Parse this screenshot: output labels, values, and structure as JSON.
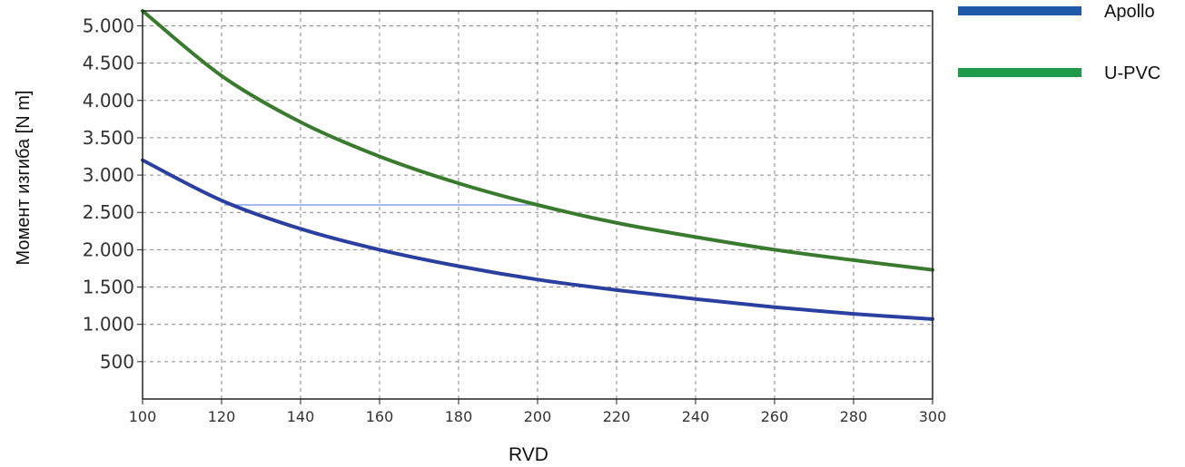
{
  "chart_data": {
    "type": "line",
    "title": "",
    "xlabel": "RVD",
    "ylabel": "Момент изгиба [N m]",
    "xlim": [
      100,
      300
    ],
    "ylim": [
      0,
      5200
    ],
    "x_ticks": [
      100,
      120,
      140,
      160,
      180,
      200,
      220,
      240,
      260,
      280,
      300
    ],
    "x_tick_labels": [
      "100",
      "120",
      "140",
      "160",
      "180",
      "200",
      "220",
      "240",
      "260",
      "280",
      "300"
    ],
    "y_ticks": [
      500,
      1000,
      1500,
      2000,
      2500,
      3000,
      3500,
      4000,
      4500,
      5000
    ],
    "y_tick_labels": [
      "500",
      "1.000",
      "1.500",
      "2.000",
      "2.500",
      "3.000",
      "3.500",
      "4.000",
      "4.500",
      "5.000"
    ],
    "grid": true,
    "legend_position": "top-right outside",
    "x": [
      100,
      120,
      140,
      160,
      180,
      200,
      220,
      240,
      260,
      280,
      300
    ],
    "series": [
      {
        "name": "Apollo",
        "color": "#2a3fa0",
        "legend_color": "#1f5aa8",
        "values": [
          3200,
          2660,
          2280,
          2000,
          1780,
          1600,
          1460,
          1340,
          1230,
          1140,
          1070
        ]
      },
      {
        "name": "U-PVC",
        "color": "#3a7a2e",
        "legend_color": "#1e9a4a",
        "values": [
          5200,
          4330,
          3710,
          3250,
          2890,
          2600,
          2360,
          2170,
          2000,
          1860,
          1730
        ]
      }
    ],
    "annotations": [
      {
        "type": "horizontal_line",
        "y": 2600,
        "x_start": 100,
        "x_end": 200,
        "color": "#8aa0e8"
      }
    ]
  }
}
